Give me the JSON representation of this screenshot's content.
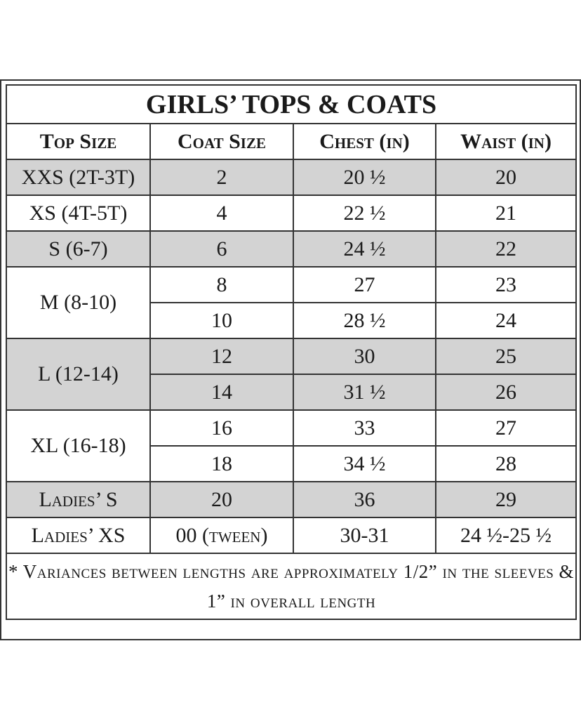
{
  "table": {
    "title": "GIRLS’ TOPS & COATS",
    "headers": [
      "Top Size",
      "Coat Size",
      "Chest (in)",
      "Waist (in)"
    ],
    "groups": [
      {
        "top_size": "XXS (2T-3T)",
        "shaded": true,
        "rows": [
          {
            "coat": "2",
            "chest": "20 ½",
            "waist": "20"
          }
        ]
      },
      {
        "top_size": "XS (4T-5T)",
        "shaded": false,
        "rows": [
          {
            "coat": "4",
            "chest": "22 ½",
            "waist": "21"
          }
        ]
      },
      {
        "top_size": "S (6-7)",
        "shaded": true,
        "rows": [
          {
            "coat": "6",
            "chest": "24 ½",
            "waist": "22"
          }
        ]
      },
      {
        "top_size": "M (8-10)",
        "shaded": false,
        "rows": [
          {
            "coat": "8",
            "chest": "27",
            "waist": "23"
          },
          {
            "coat": "10",
            "chest": "28 ½",
            "waist": "24"
          }
        ]
      },
      {
        "top_size": "L (12-14)",
        "shaded": true,
        "rows": [
          {
            "coat": "12",
            "chest": "30",
            "waist": "25"
          },
          {
            "coat": "14",
            "chest": "31 ½",
            "waist": "26"
          }
        ]
      },
      {
        "top_size": "XL (16-18)",
        "shaded": false,
        "rows": [
          {
            "coat": "16",
            "chest": "33",
            "waist": "27"
          },
          {
            "coat": "18",
            "chest": "34 ½",
            "waist": "28"
          }
        ]
      },
      {
        "top_size": "Ladies’ S",
        "shaded": true,
        "small_caps": true,
        "rows": [
          {
            "coat": "20",
            "chest": "36",
            "waist": "29"
          }
        ]
      },
      {
        "top_size": "Ladies’ XS",
        "shaded": false,
        "small_caps": true,
        "rows": [
          {
            "coat": "00 (tween)",
            "chest": "30-31",
            "waist": "24 ½-25 ½"
          }
        ]
      }
    ],
    "footnote": "* Variances between lengths are approximately 1/2” in the sleeves & 1” in overall length"
  }
}
